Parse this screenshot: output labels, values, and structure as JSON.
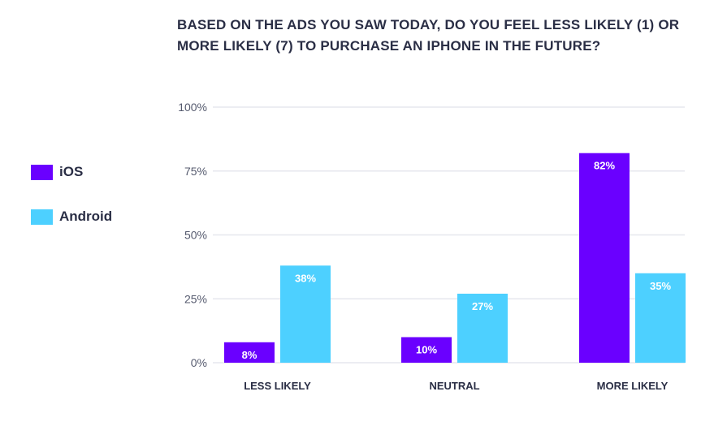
{
  "chart_data": {
    "type": "bar",
    "title": "BASED ON THE ADS YOU SAW TODAY, DO YOU FEEL LESS LIKELY (1) OR MORE LIKELY (7) TO PURCHASE AN IPHONE IN THE FUTURE?",
    "categories": [
      "LESS LIKELY",
      "NEUTRAL",
      "MORE LIKELY"
    ],
    "series": [
      {
        "name": "iOS",
        "color": "#6a00ff",
        "values": [
          8,
          10,
          82
        ],
        "labels": [
          "8%",
          "10%",
          "82%"
        ]
      },
      {
        "name": "Android",
        "color": "#4dd0ff",
        "values": [
          38,
          27,
          35
        ],
        "labels": [
          "38%",
          "27%",
          "35%"
        ]
      }
    ],
    "yticks": [
      0,
      25,
      50,
      75,
      100
    ],
    "ytick_labels": [
      "0%",
      "25%",
      "50%",
      "75%",
      "100%"
    ],
    "ylim": [
      0,
      100
    ],
    "legend": "left",
    "grid": true
  }
}
